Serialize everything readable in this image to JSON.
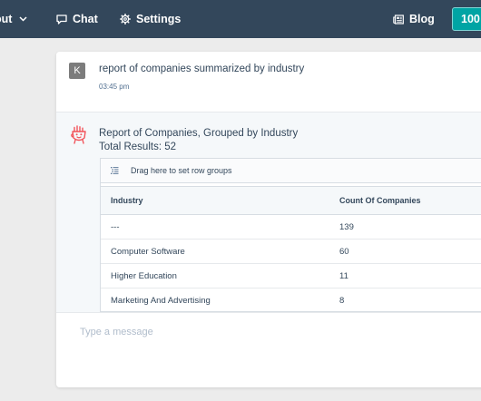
{
  "nav": {
    "about_label": "out",
    "chat_label": "Chat",
    "settings_label": "Settings",
    "blog_label": "Blog",
    "credits_label": "100"
  },
  "colors": {
    "nav_bg": "#33475b",
    "accent": "#00a4a4",
    "bot_icon": "#f2545b"
  },
  "conversation": {
    "user_message": {
      "avatar_initial": "K",
      "text": "report of companies summarized by industry",
      "time": "03:45 pm"
    },
    "bot_message": {
      "title": "Report of Companies, Grouped by Industry",
      "total": "Total Results: 52",
      "grid": {
        "group_hint": "Drag here to set row groups",
        "columns": [
          "Industry",
          "Count Of Companies"
        ],
        "rows": [
          {
            "industry": "---",
            "count": "139"
          },
          {
            "industry": "Computer Software",
            "count": "60"
          },
          {
            "industry": "Higher Education",
            "count": "11"
          },
          {
            "industry": "Marketing And Advertising",
            "count": "8"
          }
        ]
      }
    }
  },
  "composer": {
    "placeholder": "Type a message"
  },
  "icons": [
    "chevron-down-icon",
    "chat-bubble-icon",
    "gear-icon",
    "newspaper-icon",
    "row-group-icon",
    "bot-avatar-icon"
  ]
}
